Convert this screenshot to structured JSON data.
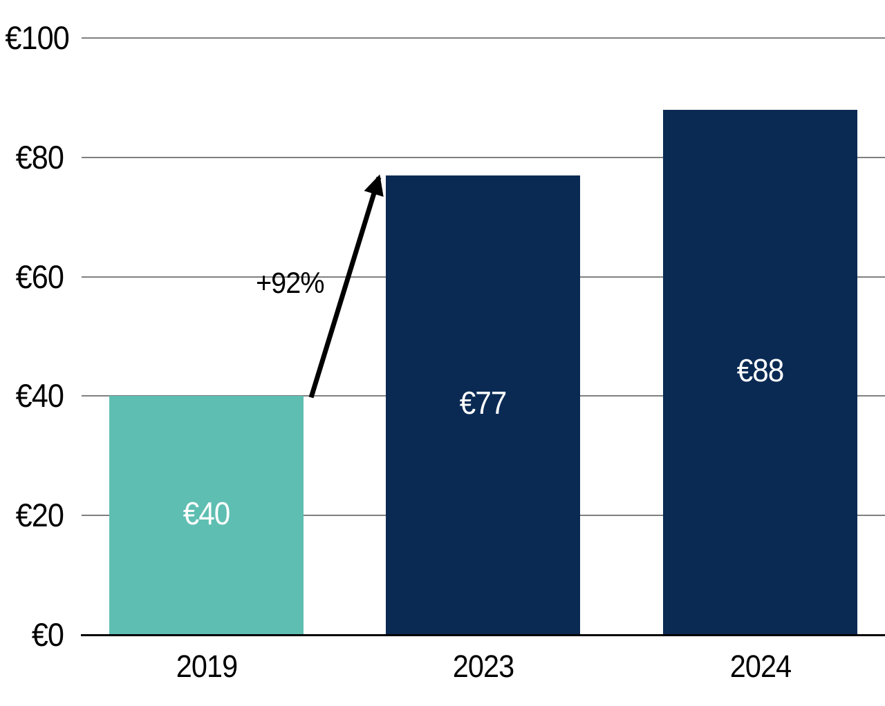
{
  "chart_data": {
    "type": "bar",
    "categories": [
      "2019",
      "2023",
      "2024"
    ],
    "values": [
      40,
      77,
      88
    ],
    "bar_labels": [
      "€40",
      "€77",
      "€88"
    ],
    "bar_colors": [
      "#5EBEB2",
      "#0A2A53",
      "#0A2A53"
    ],
    "y_ticks": [
      0,
      20,
      40,
      60,
      80,
      100
    ],
    "y_tick_labels": [
      "€0",
      "€20",
      "€40",
      "€60",
      "€80",
      "€100"
    ],
    "ylim": [
      0,
      100
    ],
    "grid": "horizontal-gridlines-on",
    "legend": "none",
    "annotation": {
      "label": "+92%",
      "from_category": "2019",
      "to_category": "2023"
    }
  },
  "colors": {
    "teal_bar": "#5EBEB2",
    "navy_bar": "#0A2A53",
    "gridline": "#7F7F7F",
    "axis_line": "#000000",
    "bar_label_text": "#FFFFFF",
    "tick_label_text": "#000000",
    "arrow": "#000000",
    "background": "#FFFFFF"
  }
}
